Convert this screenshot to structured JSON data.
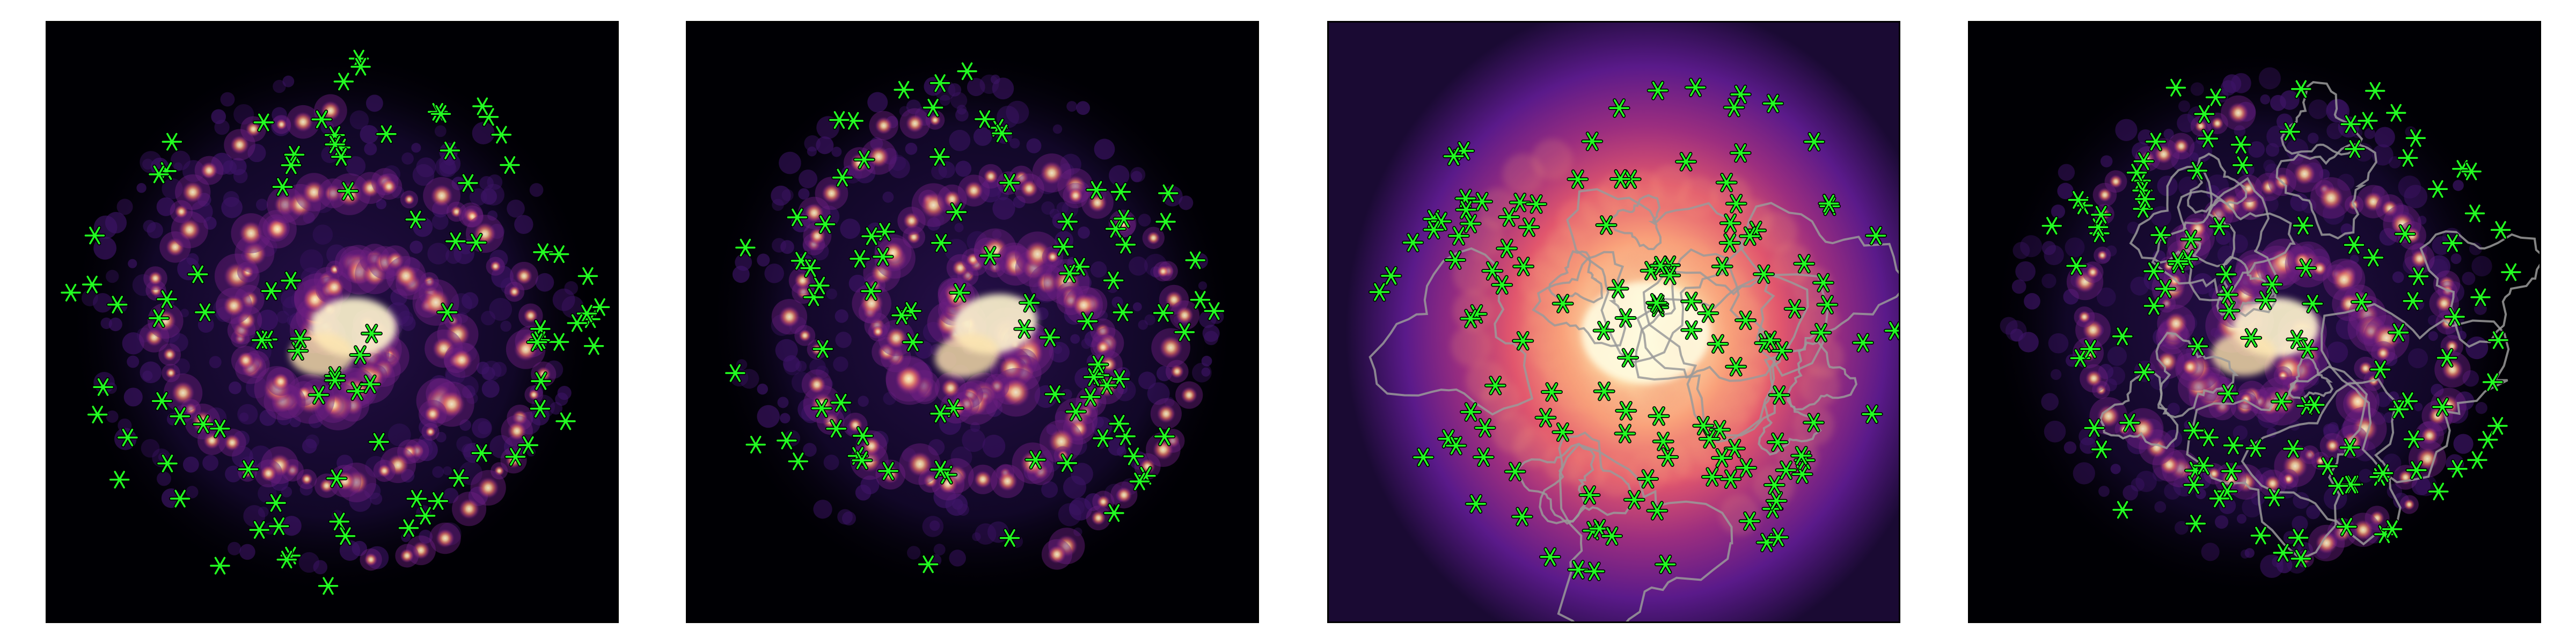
{
  "colors": {
    "background": "#ffffff",
    "frame": "#000000",
    "marker_fill": "#22ff22",
    "marker_edge": "#000000",
    "contour": "#9a9a9a",
    "colormap": "magma"
  },
  "figure": {
    "panel_count": 4,
    "marker_icon": "asterisk-icon"
  },
  "panels": [
    {
      "id": "panel-1",
      "kind": "clumpy-emission-map",
      "contours": false,
      "rotated": false
    },
    {
      "id": "panel-2",
      "kind": "clumpy-emission-map",
      "contours": false,
      "rotated": true
    },
    {
      "id": "panel-3",
      "kind": "smooth-emission-map",
      "contours": true,
      "rotated": false
    },
    {
      "id": "panel-4",
      "kind": "clumpy-emission-map",
      "contours": true,
      "rotated": false
    }
  ]
}
